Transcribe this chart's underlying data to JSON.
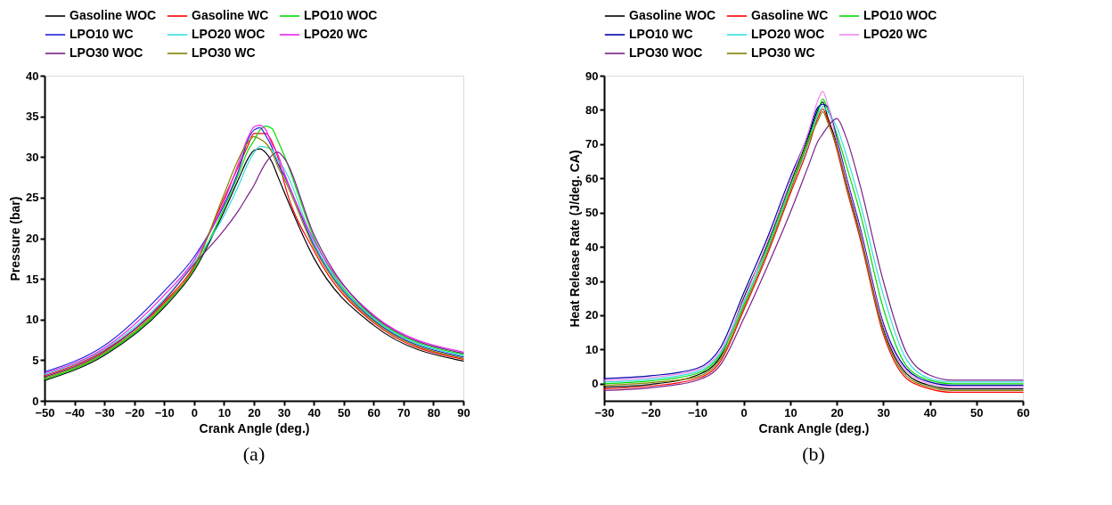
{
  "chart_data": [
    {
      "type": "line",
      "xlabel": "Crank Angle (deg.)",
      "ylabel": "Pressure (bar)",
      "annotations": [
        "(a)"
      ],
      "legend": "top",
      "grid": false,
      "marker": "none",
      "line_style": "solid",
      "xlim": [
        -50,
        90
      ],
      "xticks": [
        -50,
        -40,
        -30,
        -20,
        -10,
        0,
        10,
        20,
        30,
        40,
        50,
        60,
        70,
        80,
        90
      ],
      "ylim": [
        0,
        40
      ],
      "yticks": [
        0,
        5,
        10,
        15,
        20,
        25,
        30,
        35,
        40
      ],
      "x": [
        -50,
        -30,
        -10,
        0,
        10,
        15,
        18,
        20,
        22,
        24,
        26,
        28,
        30,
        40,
        60,
        90
      ],
      "series": [
        {
          "name": "Gasoline WOC",
          "color": "#000000",
          "values": [
            2.5,
            5.6,
            11.5,
            16.0,
            23.3,
            27.4,
            29.8,
            30.8,
            31.0,
            30.5,
            29.4,
            27.6,
            25.8,
            17.6,
            9.3,
            4.9
          ]
        },
        {
          "name": "Gasoline WC",
          "color": "#ff0000",
          "values": [
            3.1,
            6.2,
            12.1,
            16.6,
            24.9,
            29.0,
            31.4,
            32.9,
            32.9,
            32.9,
            31.9,
            30.0,
            27.0,
            18.5,
            9.6,
            5.1
          ]
        },
        {
          "name": "LPO10 WOC",
          "color": "#00dd00",
          "values": [
            2.65,
            5.75,
            11.7,
            16.2,
            23.7,
            28.0,
            30.8,
            32.0,
            33.3,
            33.8,
            33.5,
            32.0,
            30.3,
            20.1,
            10.25,
            5.7
          ]
        },
        {
          "name": "LPO10 WC",
          "color": "#2222dd",
          "values": [
            3.55,
            6.8,
            13.5,
            17.7,
            24.1,
            28.5,
            32.1,
            33.3,
            33.6,
            32.6,
            31.2,
            29.2,
            27.8,
            19.2,
            9.95,
            5.4
          ]
        },
        {
          "name": "LPO20 WOC",
          "color": "#33dddd",
          "values": [
            3.25,
            6.35,
            12.5,
            17.0,
            22.8,
            26.6,
            29.2,
            30.5,
            31.3,
            31.2,
            30.9,
            29.6,
            28.6,
            19.5,
            10.1,
            5.55
          ]
        },
        {
          "name": "LPO20 WC",
          "color": "#ee22ee",
          "values": [
            3.4,
            6.5,
            13.0,
            17.3,
            24.5,
            29.4,
            32.4,
            33.7,
            33.9,
            33.3,
            31.6,
            30.3,
            28.2,
            19.8,
            10.55,
            6.0
          ]
        },
        {
          "name": "LPO30 WOC",
          "color": "#7a1f8a",
          "values": [
            2.95,
            6.05,
            12.3,
            16.8,
            21.0,
            23.5,
            25.3,
            26.5,
            28.0,
            29.3,
            30.2,
            30.6,
            29.9,
            20.5,
            10.4,
            5.85
          ]
        },
        {
          "name": "LPO30 WC",
          "color": "#808000",
          "values": [
            2.8,
            5.9,
            11.9,
            16.4,
            25.4,
            29.9,
            31.8,
            32.5,
            32.2,
            31.7,
            30.6,
            28.8,
            27.4,
            18.9,
            9.8,
            5.25
          ]
        }
      ]
    },
    {
      "type": "line",
      "xlabel": "Crank Angle (deg.)",
      "ylabel": "Heat Release Rate (J/deg. CA)",
      "annotations": [
        "(b)"
      ],
      "legend": "top",
      "grid": false,
      "marker": "none",
      "line_style": "solid",
      "xlim": [
        -30,
        60
      ],
      "xticks": [
        -30,
        -20,
        -10,
        0,
        10,
        20,
        30,
        40,
        50,
        60
      ],
      "ylim": [
        -5,
        90
      ],
      "yticks": [
        0,
        10,
        20,
        30,
        40,
        50,
        60,
        70,
        80,
        90
      ],
      "x": [
        -30,
        -20,
        -10,
        -5,
        0,
        5,
        10,
        14,
        16,
        17,
        18,
        20,
        22,
        25,
        30,
        35,
        40,
        45,
        50,
        60
      ],
      "series": [
        {
          "name": "Gasoline WOC",
          "color": "#000000",
          "values": [
            -1,
            -0.2,
            2.5,
            7.9,
            25,
            40.4,
            58.4,
            72.4,
            80.2,
            82.3,
            78.1,
            70.1,
            59.1,
            44.1,
            16.1,
            2.9,
            -0.5,
            -1.5,
            -1.5,
            -1.5
          ]
        },
        {
          "name": "Gasoline WC",
          "color": "#ff0000",
          "values": [
            -1.5,
            -0.7,
            1.5,
            6.5,
            21.5,
            37.5,
            55.5,
            69.5,
            78,
            80.3,
            77.3,
            68.5,
            57.5,
            42.5,
            14.5,
            1.5,
            -1.5,
            -2.5,
            -2.5,
            -2.5
          ]
        },
        {
          "name": "LPO10 WOC",
          "color": "#00dd00",
          "values": [
            0,
            0.8,
            3,
            8.5,
            23,
            39.7,
            57.7,
            71.7,
            79.5,
            83.2,
            80.3,
            73,
            64,
            50,
            22,
            5.2,
            1,
            0,
            0,
            0
          ]
        },
        {
          "name": "LPO10 WC",
          "color": "#0000aa",
          "values": [
            1.5,
            2.3,
            4.5,
            10.5,
            26.5,
            42.3,
            60.3,
            73.2,
            80.9,
            81.6,
            81,
            71.7,
            60.8,
            45.7,
            17.7,
            4.3,
            0.5,
            -0.5,
            -0.5,
            -0.5
          ]
        },
        {
          "name": "LPO20 WOC",
          "color": "#33dddd",
          "values": [
            0.5,
            1.3,
            3.5,
            9,
            23.7,
            39,
            57,
            70.3,
            78.8,
            81,
            79.5,
            75,
            67,
            53,
            26,
            7,
            1.5,
            0.5,
            0.5,
            0.5
          ]
        },
        {
          "name": "LPO20 WC",
          "color": "#ee88ee",
          "values": [
            1,
            1.8,
            4,
            9.5,
            24.4,
            41.1,
            59.1,
            74,
            83,
            85.5,
            81.8,
            70.9,
            60,
            44.9,
            16.9,
            3.6,
            0,
            -1,
            -1,
            -1
          ]
        },
        {
          "name": "LPO30 WOC",
          "color": "#7a1f8a",
          "values": [
            -2,
            -1.2,
            1,
            5.5,
            19,
            34,
            50,
            64,
            71,
            73,
            75,
            77.5,
            72,
            58,
            30,
            9,
            2.5,
            1,
            1,
            1
          ]
        },
        {
          "name": "LPO30 WC",
          "color": "#808000",
          "values": [
            -0.5,
            0.3,
            2,
            7.2,
            22.2,
            38.3,
            56.3,
            71,
            77,
            79.5,
            76.5,
            69.3,
            58.3,
            43.3,
            15.3,
            2.2,
            -1,
            -2,
            -2,
            -2
          ]
        }
      ]
    }
  ]
}
